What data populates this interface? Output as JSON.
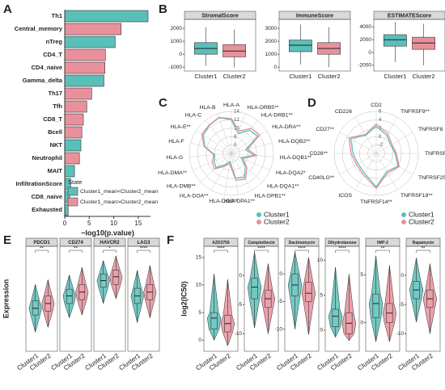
{
  "chart_data": [
    {
      "panel": "A",
      "type": "bar",
      "orientation": "horizontal",
      "categories": [
        "Th1",
        "Central_memory",
        "nTreg",
        "CD4_T",
        "CD4_naive",
        "Gamma_delta",
        "Th17",
        "Tfh",
        "CD8_T",
        "Bcell",
        "NKT",
        "Neutrophil",
        "MAIT",
        "InfiltrationScore",
        "CD8_naive",
        "Exhausted"
      ],
      "series": [
        {
          "name": "Cluster1_mean<Cluster2_mean",
          "color": "#5bbfb9",
          "values": [
            17,
            null,
            10.3,
            null,
            null,
            8,
            null,
            null,
            null,
            null,
            3.3,
            null,
            2,
            1.2,
            1,
            0.7
          ]
        },
        {
          "name": "Cluster1_mean>Cluster2_mean",
          "color": "#e8919c",
          "values": [
            null,
            11.5,
            null,
            8.3,
            8.2,
            null,
            5.5,
            4.5,
            3.8,
            3.5,
            null,
            3,
            null,
            null,
            null,
            null
          ]
        }
      ],
      "xlabel": "−log10(p.value)",
      "xlim": [
        0,
        17.5
      ],
      "xticks": [
        0,
        5,
        10,
        15
      ],
      "legend_title": "State",
      "legend": "lower right"
    },
    {
      "panel": "B",
      "type": "box",
      "categories": [
        "Cluster1",
        "Cluster2"
      ],
      "colors": [
        "#5bbfb9",
        "#e8919c"
      ],
      "panels": [
        {
          "title": "StromalScore",
          "ylim": [
            -1300,
            2700
          ],
          "yticks": [
            -1000,
            0,
            1000,
            2000
          ],
          "boxes": [
            {
              "min": -900,
              "q1": 0,
              "median": 450,
              "q3": 900,
              "max": 2100
            },
            {
              "min": -1000,
              "q1": -200,
              "median": 250,
              "q3": 750,
              "max": 1900
            }
          ]
        },
        {
          "title": "ImmuneScore",
          "ylim": [
            -300,
            3700
          ],
          "yticks": [
            0,
            1000,
            2000,
            3000
          ],
          "boxes": [
            {
              "min": 200,
              "q1": 1200,
              "median": 1700,
              "q3": 2100,
              "max": 3300
            },
            {
              "min": 0,
              "q1": 1000,
              "median": 1450,
              "q3": 1900,
              "max": 3100
            }
          ]
        },
        {
          "title": "ESTIMATEScore",
          "ylim": [
            -2900,
            5200
          ],
          "yticks": [
            -2000,
            0,
            2000,
            4000
          ],
          "boxes": [
            {
              "min": -1500,
              "q1": 1000,
              "median": 2000,
              "q3": 2800,
              "max": 4800
            },
            {
              "min": -2000,
              "q1": 500,
              "median": 1500,
              "q3": 2400,
              "max": 4500
            }
          ]
        }
      ]
    },
    {
      "panel": "C",
      "type": "radar",
      "categories": [
        "HLA-A",
        "HLA-DRB5**",
        "HLA-DRB1**",
        "HLA-DRA**",
        "HLA-DQB2**",
        "HLA-DQB1**",
        "HLA-DQA2*",
        "HLA-DQA1**",
        "HLA-DPB1**",
        "HLA-DPA1**",
        "HLA-DOB**",
        "HLA-DOA**",
        "HLA-DMB**",
        "HLA-DMA**",
        "HLA-G",
        "HLA-F",
        "HLA-E**",
        "HLA-C",
        "HLA-B"
      ],
      "series": [
        {
          "name": "Cluster1",
          "color": "#5bbfb9",
          "values": [
            12,
            9,
            11,
            11.5,
            7.5,
            9.5,
            6.5,
            8.5,
            10.5,
            10,
            6,
            7,
            9,
            8.5,
            8,
            10.5,
            12,
            12.5,
            13
          ]
        },
        {
          "name": "Cluster2",
          "color": "#e8919c",
          "values": [
            12.3,
            9.6,
            11.6,
            12,
            8,
            10,
            7,
            9,
            11,
            10.5,
            6.5,
            7.5,
            9.5,
            9,
            8.2,
            10.7,
            12.4,
            12.6,
            13.1
          ]
        }
      ],
      "rlim": [
        4,
        14
      ],
      "rticks": [
        6,
        8,
        10,
        12,
        14
      ]
    },
    {
      "panel": "D",
      "type": "radar",
      "categories": [
        "CD2",
        "TNFRSF9**",
        "TNFRSF8",
        "TNFRSF4",
        "TNFRSF25*",
        "TNFRSF18**",
        "TNFRSF14**",
        "ICOS",
        "CD40LG**",
        "CD28**",
        "CD27**",
        "CD226"
      ],
      "series": [
        {
          "name": "Cluster1",
          "color": "#5bbfb9",
          "values": [
            2.5,
            1,
            0,
            0.5,
            2,
            1,
            4,
            1.5,
            1,
            1.5,
            3,
            1
          ]
        },
        {
          "name": "Cluster2",
          "color": "#e8919c",
          "values": [
            3,
            1.5,
            0.3,
            0.8,
            2.3,
            1.4,
            4.3,
            2,
            1.4,
            2,
            3.5,
            1.2
          ]
        }
      ],
      "rlim": [
        -4,
        6
      ],
      "rticks": [
        -2,
        0,
        2,
        4,
        6
      ]
    },
    {
      "panel": "E",
      "type": "violin",
      "ylabel": "Expression",
      "categories": [
        "Cluster1",
        "Cluster2"
      ],
      "colors": [
        "#5bbfb9",
        "#e8919c"
      ],
      "ylim": [
        -3,
        8
      ],
      "panels": [
        {
          "title": "PDCD1",
          "sig": "**",
          "boxes": [
            {
              "min": -1,
              "q1": 0.8,
              "median": 1.5,
              "q3": 2.3,
              "max": 4
            },
            {
              "min": -0.5,
              "q1": 1.2,
              "median": 2,
              "q3": 2.8,
              "max": 4.5
            }
          ]
        },
        {
          "title": "CD274",
          "sig": "**",
          "boxes": [
            {
              "min": 0.5,
              "q1": 2,
              "median": 2.8,
              "q3": 3.5,
              "max": 5
            },
            {
              "min": 0.8,
              "q1": 2.4,
              "median": 3.2,
              "q3": 4,
              "max": 5.8
            }
          ]
        },
        {
          "title": "HAVCR2",
          "sig": "*",
          "boxes": [
            {
              "min": 2,
              "q1": 3.7,
              "median": 4.4,
              "q3": 5.1,
              "max": 6.5
            },
            {
              "min": 2.5,
              "q1": 4,
              "median": 4.8,
              "q3": 5.5,
              "max": 7
            }
          ]
        },
        {
          "title": "LAG3",
          "sig": "****",
          "boxes": [
            {
              "min": 0,
              "q1": 2,
              "median": 2.8,
              "q3": 3.6,
              "max": 5.5
            },
            {
              "min": 0.5,
              "q1": 2.4,
              "median": 3.2,
              "q3": 4,
              "max": 6
            }
          ]
        }
      ]
    },
    {
      "panel": "F",
      "type": "violin",
      "ylabel": "log2(IC50)",
      "categories": [
        "Cluster1",
        "Cluster2"
      ],
      "colors": [
        "#5bbfb9",
        "#e8919c"
      ],
      "panels": [
        {
          "title": "AZD3759",
          "sig": "****",
          "ylim": [
            -2,
            17
          ],
          "yticks": [
            0,
            5,
            10,
            15
          ],
          "boxes": [
            {
              "min": 0,
              "q1": 2,
              "median": 4,
              "q3": 5,
              "max": 12
            },
            {
              "min": -1,
              "q1": 1.5,
              "median": 3,
              "q3": 4.5,
              "max": 11
            }
          ]
        },
        {
          "title": "Camptothecin",
          "sig": "****",
          "ylim": [
            -13,
            5
          ],
          "yticks": [
            -10,
            -5,
            0
          ],
          "boxes": [
            {
              "min": -9,
              "q1": -4,
              "median": -2,
              "q3": -0.5,
              "max": 4
            },
            {
              "min": -10,
              "q1": -5.5,
              "median": -4,
              "q3": -2.5,
              "max": 2
            }
          ]
        },
        {
          "title": "Dactinomycin",
          "sig": "****",
          "ylim": [
            -14,
            5
          ],
          "yticks": [
            -10,
            -5,
            0
          ],
          "boxes": [
            {
              "min": -10,
              "q1": -4,
              "median": -2,
              "q3": 0,
              "max": 4
            },
            {
              "min": -11,
              "q1": -5,
              "median": -3.5,
              "q3": -1.5,
              "max": 3
            }
          ]
        },
        {
          "title": "Dihydrotanone",
          "sig": "****",
          "ylim": [
            -3,
            12
          ],
          "yticks": [
            0,
            5,
            10
          ],
          "boxes": [
            {
              "min": -1,
              "q1": 0.5,
              "median": 2,
              "q3": 3,
              "max": 9
            },
            {
              "min": -1.5,
              "q1": -0.5,
              "median": 1,
              "q3": 2.5,
              "max": 8
            }
          ]
        },
        {
          "title": "IWP-2",
          "sig": "**",
          "ylim": [
            -3,
            8
          ],
          "yticks": [
            0,
            5
          ],
          "boxes": [
            {
              "min": -2,
              "q1": 0.5,
              "median": 2,
              "q3": 3,
              "max": 7
            },
            {
              "min": -2,
              "q1": 0,
              "median": 1,
              "q3": 2,
              "max": 6
            }
          ]
        },
        {
          "title": "Rapamycin",
          "sig": "**",
          "ylim": [
            -13,
            5
          ],
          "yticks": [
            -10,
            -5,
            0
          ],
          "boxes": [
            {
              "min": -8,
              "q1": -4,
              "median": -2.5,
              "q3": -1,
              "max": 3
            },
            {
              "min": -10,
              "q1": -5.5,
              "median": -4,
              "q3": -2.5,
              "max": 2
            }
          ]
        }
      ]
    }
  ]
}
